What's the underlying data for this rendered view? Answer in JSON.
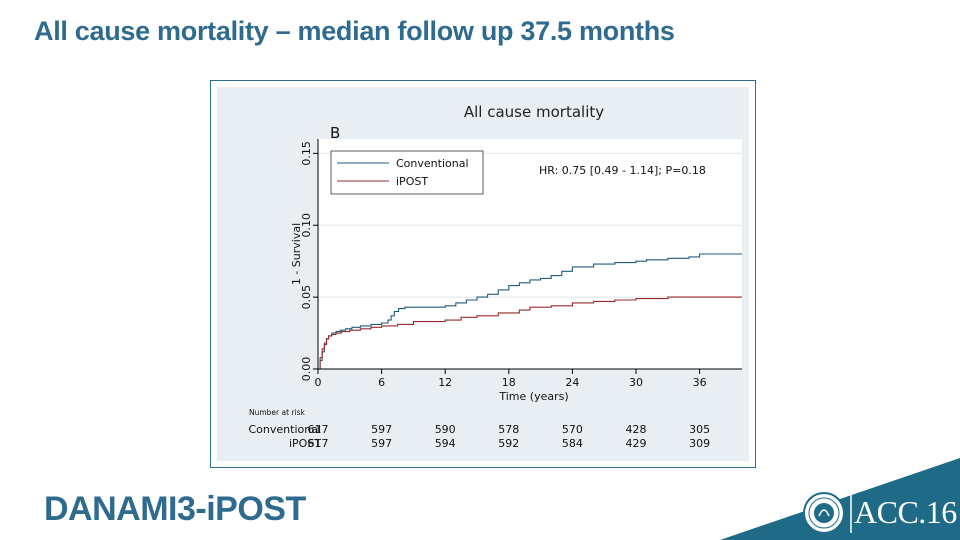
{
  "slide": {
    "title": "All cause mortality – median follow up 37.5 months",
    "footer_name": "DANAMI3-iPOST",
    "logo_text": "ACC.16"
  },
  "colors": {
    "title_blue": "#2f6b8f",
    "frame_border": "#2d6d93",
    "conventional": "#1f5b7a",
    "ipost": "#9a2a2a",
    "footer_wedge": "#1e6a87"
  },
  "chart_data": {
    "type": "line",
    "title": "All cause mortality",
    "panel_label": "B",
    "xlabel": "Time (years)",
    "ylabel": "1 - Survival",
    "xlim": [
      0,
      40
    ],
    "ylim": [
      0,
      0.16
    ],
    "xticks": [
      0,
      6,
      12,
      18,
      24,
      30,
      36
    ],
    "yticks": [
      0.0,
      0.05,
      0.1,
      0.15
    ],
    "ytick_labels": [
      "0.00",
      "0.05",
      "0.10",
      "0.15"
    ],
    "grid": true,
    "legend_position": "top-left",
    "annotation": "HR: 0.75 [0.49 - 1.14]; P=0.18",
    "series": [
      {
        "name": "Conventional",
        "step": true,
        "x": [
          0,
          0.2,
          0.4,
          0.6,
          0.8,
          1.0,
          1.3,
          1.7,
          2.1,
          2.6,
          3.2,
          4.0,
          5.0,
          6.0,
          6.6,
          6.9,
          7.2,
          7.6,
          8.2,
          9.0,
          10.5,
          12.0,
          13.0,
          14.0,
          15.0,
          16.0,
          17.0,
          18.0,
          19.0,
          20.0,
          21.0,
          22.0,
          23.0,
          24.0,
          26.0,
          28.0,
          30.0,
          31.0,
          33.0,
          35.0,
          36.0,
          40.0
        ],
        "y": [
          0,
          0.006,
          0.012,
          0.017,
          0.021,
          0.023,
          0.025,
          0.026,
          0.027,
          0.028,
          0.029,
          0.03,
          0.031,
          0.032,
          0.034,
          0.037,
          0.04,
          0.042,
          0.043,
          0.043,
          0.043,
          0.044,
          0.046,
          0.048,
          0.05,
          0.052,
          0.055,
          0.058,
          0.06,
          0.062,
          0.063,
          0.065,
          0.068,
          0.071,
          0.073,
          0.074,
          0.075,
          0.076,
          0.077,
          0.078,
          0.08,
          0.08
        ]
      },
      {
        "name": "iPOST",
        "step": true,
        "x": [
          0,
          0.2,
          0.4,
          0.6,
          0.8,
          1.0,
          1.3,
          1.7,
          2.2,
          3.0,
          4.0,
          5.0,
          6.0,
          7.5,
          9.0,
          12.0,
          13.5,
          15.0,
          17.0,
          19.0,
          20.0,
          22.0,
          24.0,
          26.0,
          28.0,
          30.0,
          33.0,
          36.0,
          40.0
        ],
        "y": [
          0,
          0.008,
          0.014,
          0.018,
          0.021,
          0.023,
          0.024,
          0.025,
          0.026,
          0.027,
          0.028,
          0.029,
          0.03,
          0.031,
          0.033,
          0.034,
          0.036,
          0.037,
          0.039,
          0.041,
          0.043,
          0.044,
          0.046,
          0.047,
          0.048,
          0.049,
          0.05,
          0.05,
          0.05
        ]
      }
    ],
    "risk_table": {
      "title": "Number at risk",
      "rows": [
        {
          "label": "Conventional",
          "values": [
            617,
            597,
            590,
            578,
            570,
            428,
            305
          ]
        },
        {
          "label": "iPOST",
          "values": [
            617,
            597,
            594,
            592,
            584,
            429,
            309
          ]
        }
      ]
    }
  }
}
